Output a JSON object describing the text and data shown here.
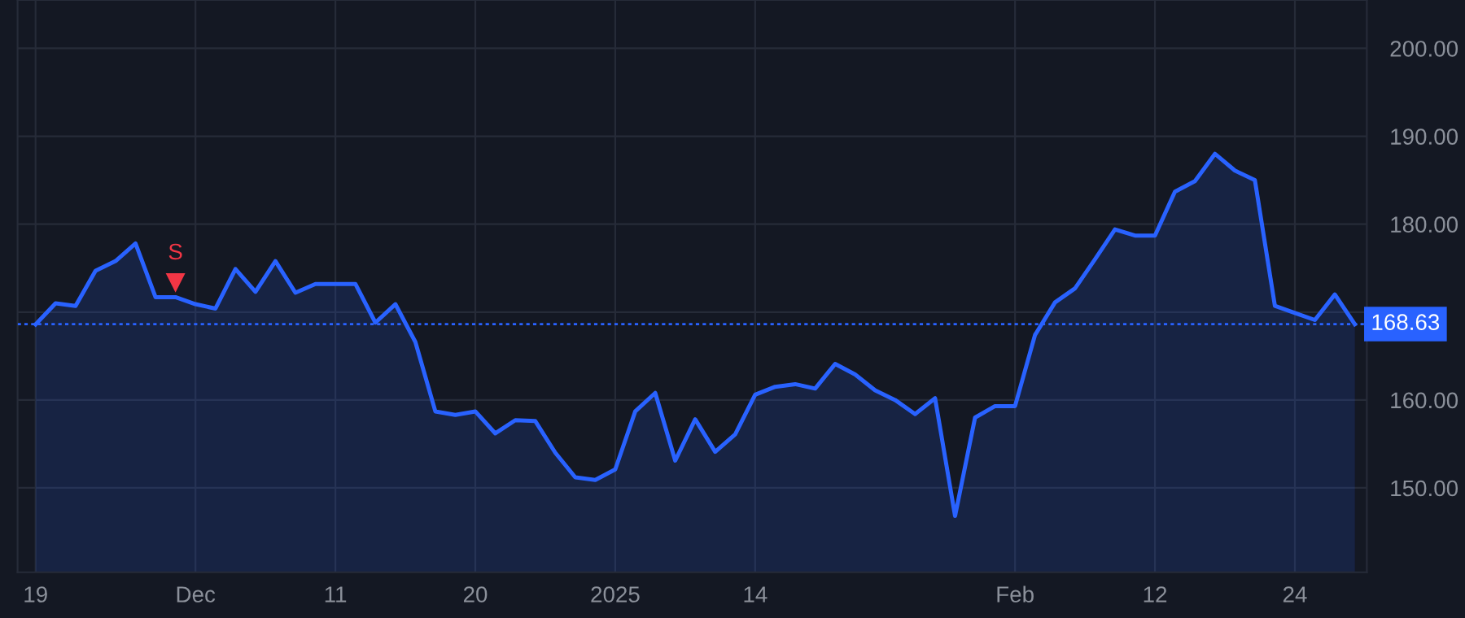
{
  "chart_data": {
    "type": "area",
    "categories": [
      "19",
      null,
      null,
      null,
      null,
      null,
      null,
      null,
      "Dec",
      null,
      null,
      null,
      null,
      null,
      null,
      "11",
      null,
      null,
      null,
      null,
      null,
      null,
      "20",
      null,
      null,
      null,
      null,
      null,
      null,
      "2025",
      null,
      null,
      null,
      null,
      null,
      null,
      "14",
      null,
      null,
      null,
      null,
      null,
      null,
      null,
      null,
      null,
      null,
      null,
      null,
      "Feb",
      null,
      null,
      null,
      null,
      null,
      null,
      "12",
      null,
      null,
      null,
      null,
      null,
      null,
      "24",
      null,
      null,
      null
    ],
    "series": [
      {
        "color": "#2962ff",
        "values": [
          168.6,
          171.0,
          170.7,
          174.7,
          175.8,
          177.8,
          171.7,
          171.7,
          170.9,
          170.4,
          174.9,
          172.3,
          175.8,
          172.2,
          173.2,
          173.2,
          173.2,
          168.8,
          170.9,
          166.6,
          158.7,
          158.3,
          158.7,
          156.2,
          157.7,
          157.6,
          154.0,
          151.2,
          150.9,
          152.1,
          158.7,
          160.8,
          153.1,
          157.8,
          154.1,
          156.1,
          160.6,
          161.5,
          161.8,
          161.3,
          164.1,
          162.9,
          161.1,
          160.0,
          158.4,
          160.2,
          146.8,
          158.0,
          159.3,
          159.3,
          167.4,
          171.1,
          172.7,
          176.0,
          179.4,
          178.7,
          178.7,
          183.7,
          184.9,
          188.0,
          186.1,
          185.0,
          170.7,
          169.9,
          169.1,
          172.0,
          168.6
        ]
      },
      {
        "type": "scatter",
        "name": "S",
        "color": "#f23645",
        "marker": "triangle",
        "values": [
          null,
          null,
          null,
          null,
          null,
          null,
          null,
          173.4,
          null,
          null,
          null,
          null,
          null,
          null,
          null,
          null,
          null,
          null,
          null,
          null,
          null,
          null,
          null,
          null,
          null,
          null,
          null,
          null,
          null,
          null,
          null,
          null,
          null,
          null,
          null,
          null,
          null,
          null,
          null,
          null,
          null,
          null,
          null,
          null,
          null,
          null,
          null,
          null,
          null,
          null,
          null,
          null,
          null,
          null,
          null,
          null,
          null,
          null,
          null,
          null,
          null,
          null,
          null,
          null,
          null,
          null,
          null
        ]
      }
    ],
    "ylim": [
      140.4,
      205.5
    ],
    "yticks": [
      {
        "value": 150,
        "label": "150.00"
      },
      {
        "value": 160,
        "label": "160.00"
      },
      {
        "value": 170,
        "label": null
      },
      {
        "value": 180,
        "label": "180.00"
      },
      {
        "value": 190,
        "label": "190.00"
      },
      {
        "value": 200,
        "label": "200.00"
      }
    ],
    "ref_lines": [
      {
        "axis": "y",
        "value": 168.63,
        "label": "168.63",
        "color": "#2962ff",
        "line_style": "dotted"
      }
    ],
    "grid": true
  }
}
